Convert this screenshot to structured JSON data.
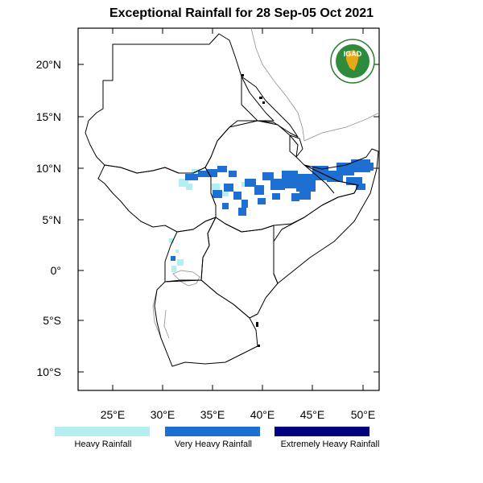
{
  "title": "Exceptional Rainfall for 28 Sep-05 Oct 2021",
  "lat_ticks": [
    "20°N",
    "15°N",
    "10°N",
    "5°N",
    "0°",
    "5°S",
    "10°S"
  ],
  "lon_ticks": [
    "25°E",
    "30°E",
    "35°E",
    "40°E",
    "45°E",
    "50°E"
  ],
  "legend": [
    {
      "label": "Heavy Rainfall",
      "color": "#b4eef0"
    },
    {
      "label": "Very Heavy Rainfall",
      "color": "#1e6fd2"
    },
    {
      "label": "Extremely Heavy Rainfall",
      "color": "#00007f"
    }
  ],
  "logo_text": "IGAD"
}
